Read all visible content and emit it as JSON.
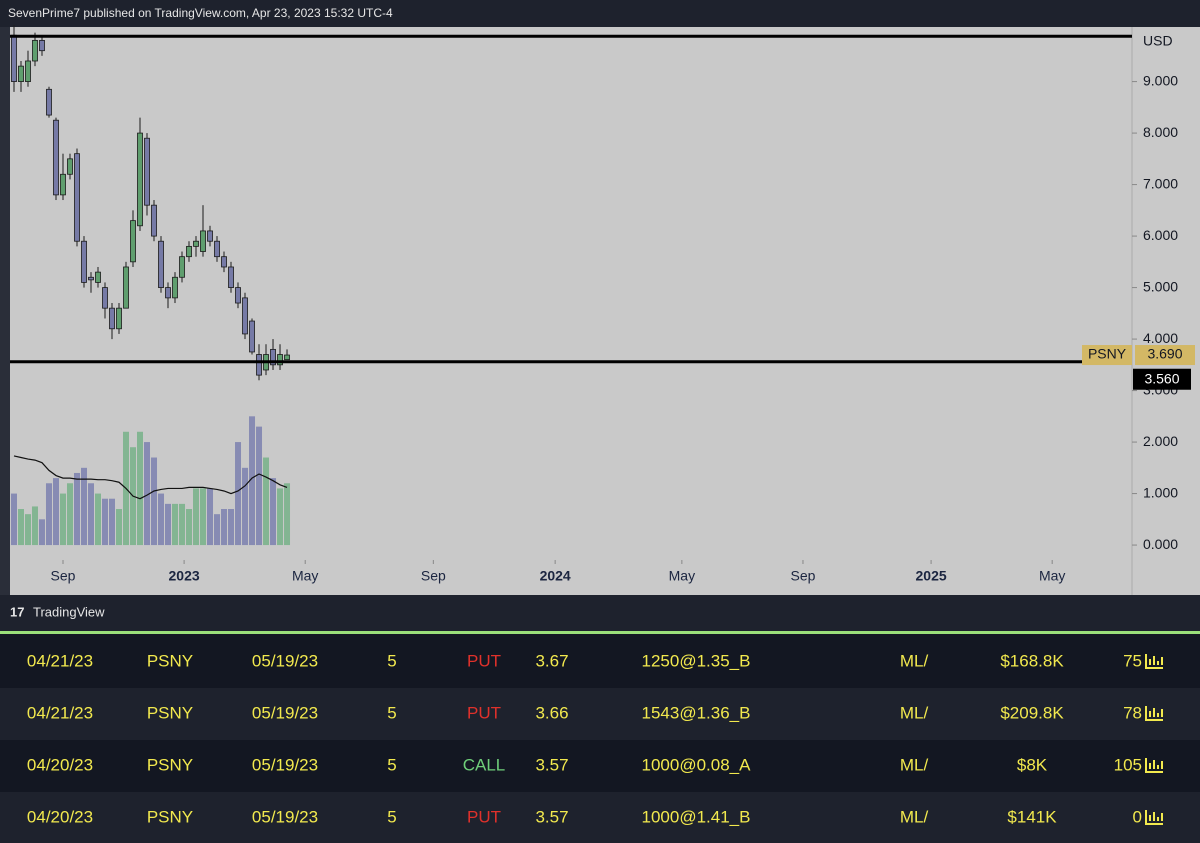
{
  "header": "SevenPrime7 published on TradingView.com, Apr 23, 2023 15:32 UTC-4",
  "chart_data": {
    "type": "candlestick",
    "axis_unit": "USD",
    "categories": [
      null,
      null,
      null,
      null,
      null,
      null,
      null,
      null,
      null,
      null,
      null,
      null,
      null,
      null,
      null,
      null,
      null,
      null,
      null,
      null,
      null,
      null,
      null,
      null,
      null,
      null,
      null,
      null,
      null,
      null,
      null,
      null,
      null,
      null,
      null,
      null,
      null,
      null,
      null,
      null
    ],
    "open": [
      9.9,
      9.0,
      9.0,
      9.4,
      9.8,
      8.85,
      8.25,
      6.8,
      7.2,
      7.6,
      5.9,
      5.2,
      5.1,
      5.0,
      4.6,
      4.2,
      4.6,
      5.5,
      6.2,
      7.9,
      6.6,
      5.9,
      5.0,
      4.8,
      5.2,
      5.6,
      5.8,
      5.7,
      6.1,
      5.9,
      5.6,
      5.4,
      5.0,
      4.8,
      4.35,
      3.7,
      3.4,
      3.8,
      3.5,
      3.6
    ],
    "high": [
      10.1,
      9.4,
      9.6,
      9.95,
      9.9,
      8.9,
      8.3,
      7.6,
      7.6,
      7.7,
      6.0,
      5.3,
      5.4,
      5.1,
      4.7,
      4.7,
      5.5,
      6.5,
      8.3,
      8.0,
      6.7,
      6.0,
      5.1,
      5.3,
      5.7,
      5.9,
      6.0,
      6.6,
      6.2,
      6.0,
      5.7,
      5.5,
      5.1,
      4.9,
      4.4,
      3.9,
      3.9,
      4.0,
      3.9,
      3.8
    ],
    "low": [
      8.8,
      8.8,
      8.9,
      9.3,
      9.5,
      8.3,
      6.7,
      6.7,
      7.1,
      5.8,
      5.0,
      4.9,
      5.0,
      4.4,
      4.0,
      4.1,
      4.6,
      5.4,
      6.1,
      6.4,
      5.9,
      4.9,
      4.6,
      4.7,
      5.1,
      5.5,
      5.6,
      5.6,
      5.8,
      5.5,
      5.3,
      4.9,
      4.6,
      4.0,
      3.7,
      3.2,
      3.3,
      3.4,
      3.4,
      3.6
    ],
    "close": [
      9.0,
      9.3,
      9.4,
      9.8,
      9.6,
      8.35,
      6.8,
      7.2,
      7.5,
      5.9,
      5.1,
      5.15,
      5.3,
      4.6,
      4.2,
      4.6,
      5.4,
      6.3,
      8.0,
      6.6,
      6.0,
      5.0,
      4.8,
      5.2,
      5.6,
      5.8,
      5.9,
      6.1,
      5.9,
      5.6,
      5.4,
      5.0,
      4.7,
      4.1,
      3.75,
      3.3,
      3.7,
      3.5,
      3.7,
      3.69
    ],
    "volume": [
      1.0,
      0.7,
      0.6,
      0.75,
      0.5,
      1.2,
      1.3,
      1.0,
      1.2,
      1.4,
      1.5,
      1.2,
      1.0,
      0.9,
      0.9,
      0.7,
      2.2,
      1.9,
      2.2,
      2.0,
      1.7,
      1.0,
      0.8,
      0.8,
      0.8,
      0.7,
      1.1,
      1.1,
      1.1,
      0.6,
      0.7,
      0.7,
      2.0,
      1.5,
      2.5,
      2.3,
      1.7,
      1.3,
      1.1,
      1.2
    ],
    "volume_ma": [
      1.73,
      1.7,
      1.67,
      1.65,
      1.6,
      1.45,
      1.35,
      1.3,
      1.3,
      1.28,
      1.28,
      1.28,
      1.27,
      1.27,
      1.25,
      1.22,
      1.1,
      0.95,
      0.9,
      0.97,
      1.05,
      1.08,
      1.1,
      1.1,
      1.1,
      1.12,
      1.12,
      1.12,
      1.1,
      1.08,
      1.05,
      1.0,
      1.05,
      1.15,
      1.3,
      1.38,
      1.32,
      1.25,
      1.17,
      1.12
    ],
    "up_color": "#5f9e6e",
    "down_color": "#767aa6",
    "volume_up_color": "#83b592",
    "volume_down_color": "#878bb3",
    "volume_ma_color": "#111111",
    "xlim": [
      -0.57,
      159.7
    ],
    "xticks": [
      {
        "value": 7.0,
        "label": "Sep"
      },
      {
        "value": 24.3,
        "label": "2023"
      },
      {
        "value": 41.6,
        "label": "May"
      },
      {
        "value": 59.9,
        "label": "Sep"
      },
      {
        "value": 77.3,
        "label": "2024"
      },
      {
        "value": 95.4,
        "label": "May"
      },
      {
        "value": 112.7,
        "label": "Sep"
      },
      {
        "value": 131.0,
        "label": "2025"
      },
      {
        "value": 148.3,
        "label": "May"
      }
    ],
    "ylim": [
      -0.29,
      10.06
    ],
    "yticks": [
      {
        "value": 0,
        "label": "0.000"
      },
      {
        "value": 1,
        "label": "1.000"
      },
      {
        "value": 2,
        "label": "2.000"
      },
      {
        "value": 3,
        "label": "3.000"
      },
      {
        "value": 4,
        "label": "4.000"
      },
      {
        "value": 5,
        "label": "5.000"
      },
      {
        "value": 6,
        "label": "6.000"
      },
      {
        "value": 7,
        "label": "7.000"
      },
      {
        "value": 8,
        "label": "8.000"
      },
      {
        "value": 9,
        "label": "9.000"
      }
    ],
    "levels": [
      {
        "value": 9.88
      },
      {
        "value": 3.56,
        "label": "3.560"
      }
    ],
    "last_price": {
      "symbol": "PSNY",
      "value": 3.69,
      "label": "3.690"
    },
    "footer": "TradingView"
  },
  "table": {
    "rows": [
      [
        "04/21/23",
        "PSNY",
        "05/19/23",
        "5",
        "PUT",
        "3.67",
        "1250@1.35_B",
        "ML/",
        "$168.8K",
        "75"
      ],
      [
        "04/21/23",
        "PSNY",
        "05/19/23",
        "5",
        "PUT",
        "3.66",
        "1543@1.36_B",
        "ML/",
        "$209.8K",
        "78"
      ],
      [
        "04/20/23",
        "PSNY",
        "05/19/23",
        "5",
        "CALL",
        "3.57",
        "1000@0.08_A",
        "ML/",
        "$8K",
        "105"
      ],
      [
        "04/20/23",
        "PSNY",
        "05/19/23",
        "5",
        "PUT",
        "3.57",
        "1000@1.41_B",
        "ML/",
        "$141K",
        "0"
      ]
    ],
    "side_colors": [
      "#e0312b",
      "#e0312b",
      "#6fcf7a",
      "#e0312b"
    ],
    "text_color": "#f2e94e"
  }
}
